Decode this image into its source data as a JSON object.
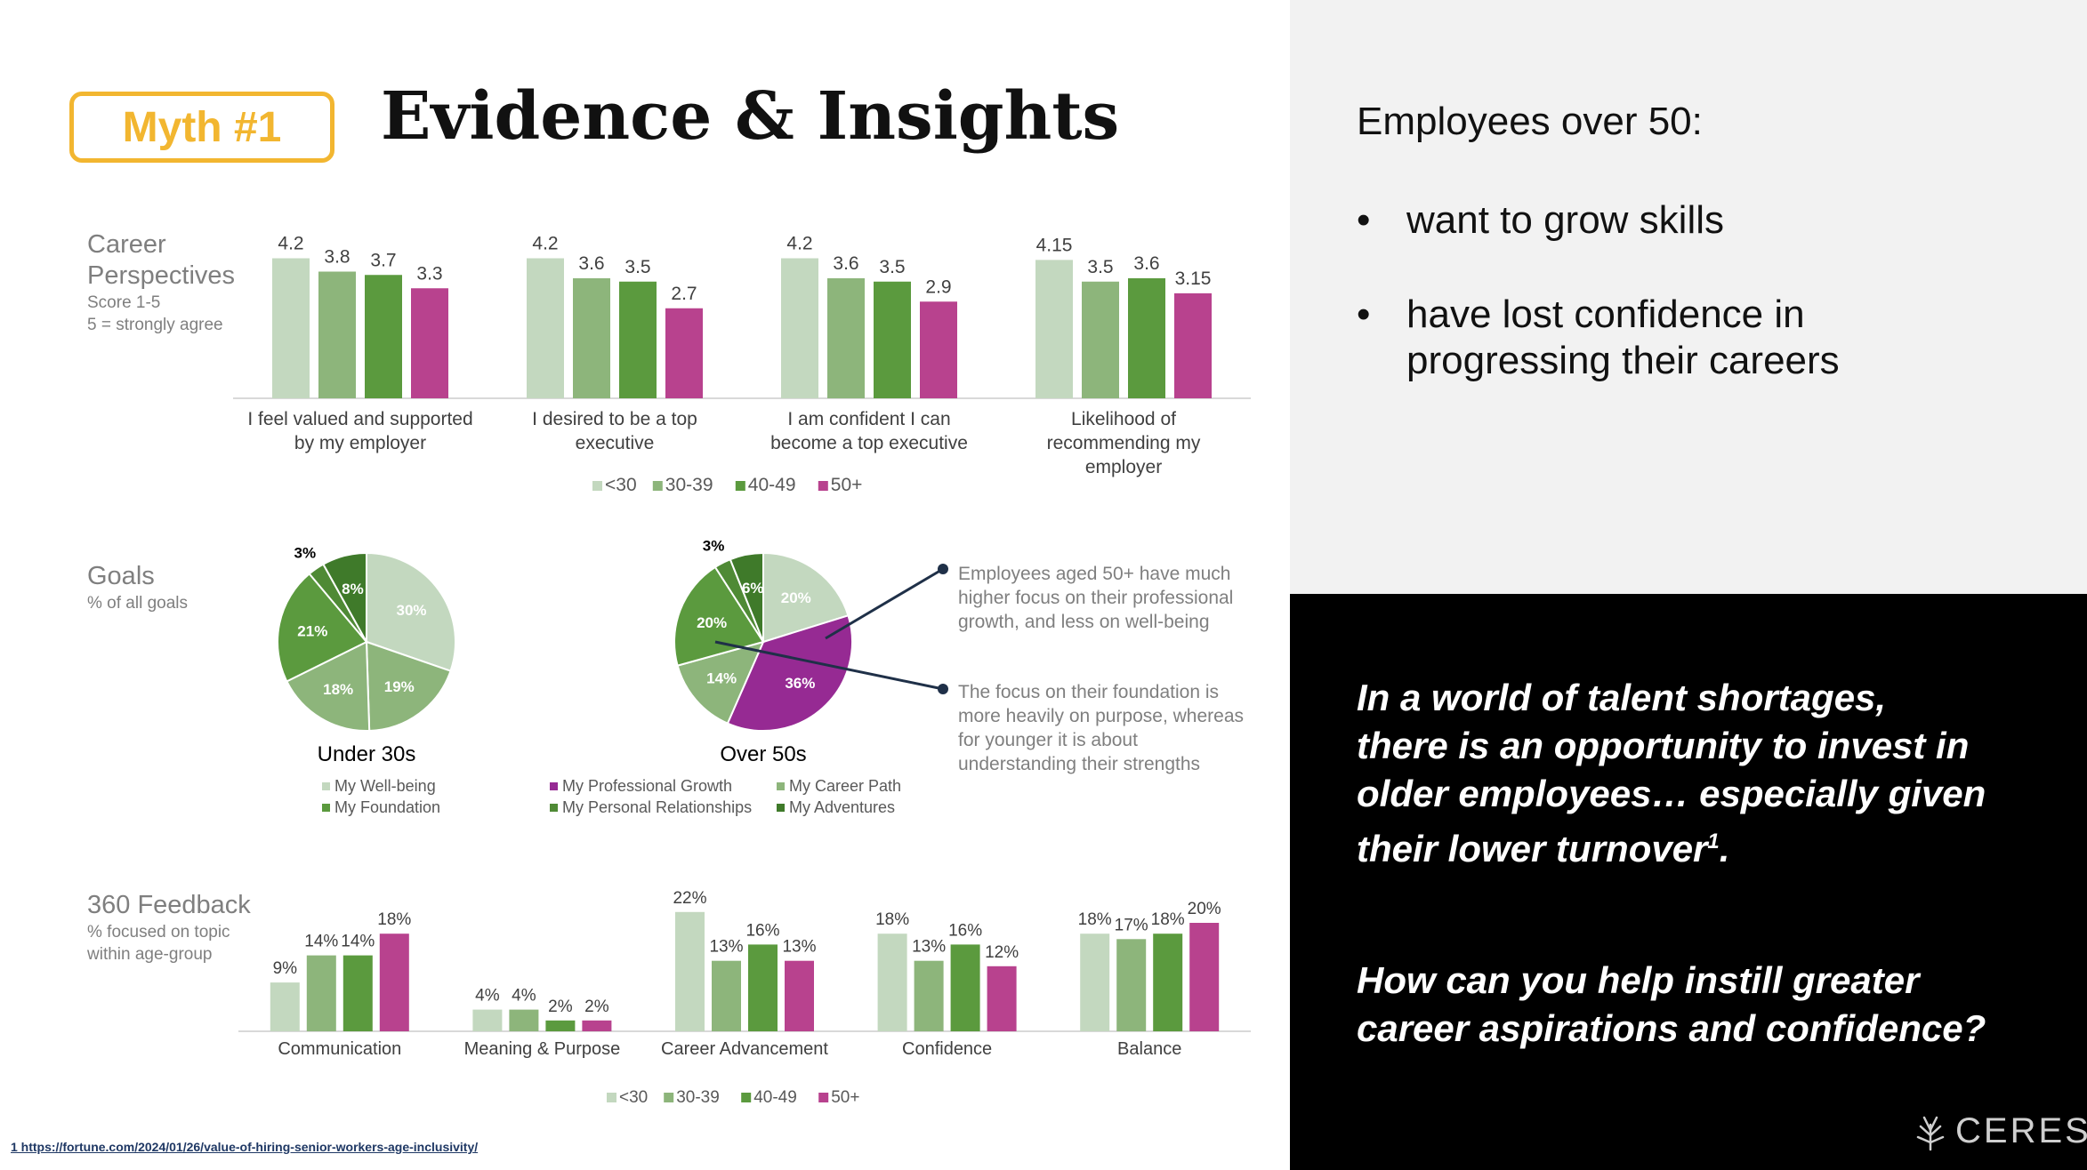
{
  "header": {
    "badge": "Myth #1",
    "title": "Evidence & Insights"
  },
  "colors": {
    "u30": "#c3d8bf",
    "a30": "#8db57b",
    "a40": "#5b9a3e",
    "a50": "#b8428e",
    "badge": "#f2b630",
    "pie_over50_highlight": "#962a93",
    "callout_line": "#1f3048"
  },
  "career": {
    "title_line1": "Career",
    "title_line2": "Perspectives",
    "sub_line1": "Score 1-5",
    "sub_line2": "5 = strongly agree"
  },
  "goals": {
    "title": "Goals",
    "sub": "% of all goals",
    "callout1": "Employees aged 50+ have much higher focus on their professional growth, and less on well-being",
    "callout2": "The focus on their foundation is more heavily on purpose, whereas for younger it is about understanding their strengths"
  },
  "feedback": {
    "title": "360 Feedback",
    "sub_line1": "% focused on topic",
    "sub_line2": "within age-group"
  },
  "right_panel": {
    "heading": "Employees over 50:",
    "bullets": [
      {
        "line1": "want to grow skills",
        "line2": ""
      },
      {
        "line1": "have lost confidence in",
        "line2": "progressing their careers"
      }
    ],
    "bullet_char": "•",
    "statement_lines": [
      "In a world of talent shortages,",
      "there is an opportunity to invest in",
      "older employees… especially given"
    ],
    "statement_last": "their lower turnover",
    "statement_sup": "1",
    "statement_end": ".",
    "question_lines": [
      "How can you help instill greater",
      "career aspirations and confidence?"
    ]
  },
  "footnote": "1 https://fortune.com/2024/01/26/value-of-hiring-senior-workers-age-inclusivity/",
  "logo": {
    "text": "CERESA",
    "icon": "tree-icon"
  },
  "chart_data": [
    {
      "type": "bar",
      "categories": [
        [
          "I feel valued and supported",
          "by my employer"
        ],
        [
          "I desired to be a top",
          "executive"
        ],
        [
          "I am confident I can",
          "become a top executive"
        ],
        [
          "Likelihood of",
          "recommending my",
          "employer"
        ]
      ],
      "series": [
        {
          "name": "<30",
          "values": [
            4.2,
            4.2,
            4.2,
            4.15
          ],
          "labels": [
            "4.2",
            "4.2",
            "4.2",
            "4.15"
          ]
        },
        {
          "name": "30-39",
          "values": [
            3.8,
            3.6,
            3.6,
            3.5
          ],
          "labels": [
            "3.8",
            "3.6",
            "3.6",
            "3.5"
          ]
        },
        {
          "name": "40-49",
          "values": [
            3.7,
            3.5,
            3.5,
            3.6
          ],
          "labels": [
            "3.7",
            "3.5",
            "3.5",
            "3.6"
          ]
        },
        {
          "name": "50+",
          "values": [
            3.3,
            2.7,
            2.9,
            3.15
          ],
          "labels": [
            "3.3",
            "2.7",
            "2.9",
            "3.15"
          ]
        }
      ],
      "legend": "bottom"
    },
    {
      "type": "pie",
      "title": "Under 30s",
      "slices": [
        {
          "label": "My Well-being",
          "value": 30,
          "text": "30%"
        },
        {
          "label": "My Career Path",
          "value": 19,
          "text": "19%"
        },
        {
          "label": "My Professional Growth",
          "value": 18,
          "text": "18%"
        },
        {
          "label": "My Foundation",
          "value": 21,
          "text": "21%"
        },
        {
          "label": "My Personal Relationships",
          "value": 3,
          "text": "3%"
        },
        {
          "label": "My Adventures",
          "value": 8,
          "text": "8%"
        }
      ],
      "legend": [
        "My Well-being",
        "My Foundation"
      ]
    },
    {
      "type": "pie",
      "title": "Over 50s",
      "slices": [
        {
          "label": "My Well-being",
          "value": 20,
          "text": "20%"
        },
        {
          "label": "My Professional Growth",
          "value": 36,
          "text": "36%"
        },
        {
          "label": "My Career Path",
          "value": 14,
          "text": "14%"
        },
        {
          "label": "My Foundation",
          "value": 20,
          "text": "20%"
        },
        {
          "label": "My Personal Relationships",
          "value": 3,
          "text": "3%"
        },
        {
          "label": "My Adventures",
          "value": 6,
          "text": "6%"
        }
      ],
      "legend": [
        "My Professional Growth",
        "My Career Path",
        "My Personal Relationships",
        "My Adventures"
      ]
    },
    {
      "type": "bar",
      "categories": [
        [
          "Communication"
        ],
        [
          "Meaning & Purpose"
        ],
        [
          "Career Advancement"
        ],
        [
          "Confidence"
        ],
        [
          "Balance"
        ]
      ],
      "series": [
        {
          "name": "<30",
          "values": [
            9,
            4,
            22,
            18,
            18
          ],
          "labels": [
            "9%",
            "4%",
            "22%",
            "18%",
            "18%"
          ]
        },
        {
          "name": "30-39",
          "values": [
            14,
            4,
            13,
            13,
            17
          ],
          "labels": [
            "14%",
            "4%",
            "13%",
            "13%",
            "17%"
          ]
        },
        {
          "name": "40-49",
          "values": [
            14,
            2,
            16,
            16,
            18
          ],
          "labels": [
            "14%",
            "2%",
            "16%",
            "16%",
            "18%"
          ]
        },
        {
          "name": "50+",
          "values": [
            18,
            2,
            13,
            12,
            20
          ],
          "labels": [
            "18%",
            "2%",
            "13%",
            "12%",
            "20%"
          ]
        }
      ],
      "legend": "bottom"
    }
  ]
}
